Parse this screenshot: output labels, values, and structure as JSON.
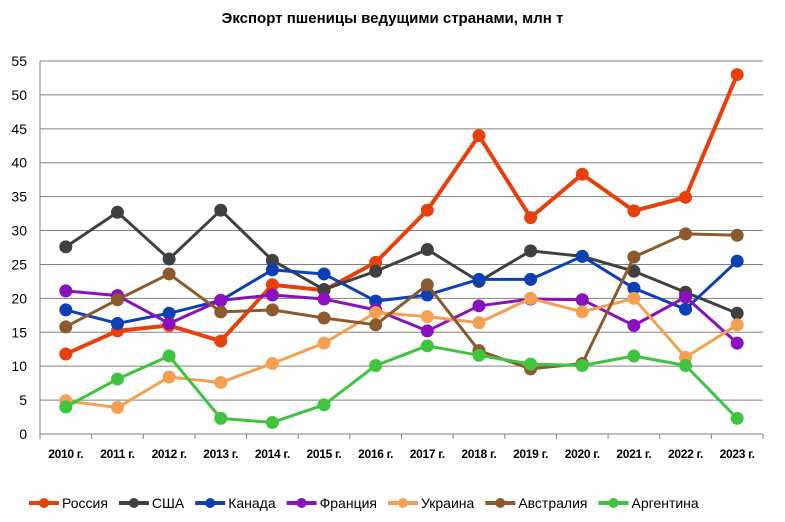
{
  "chart_data": {
    "type": "line",
    "title": "Экспорт пшеницы ведущими странами, млн т",
    "xlabel": "",
    "ylabel": "",
    "ylim": [
      0,
      55
    ],
    "yticks": [
      0,
      5,
      10,
      15,
      20,
      25,
      30,
      35,
      40,
      45,
      50,
      55
    ],
    "grid": true,
    "legend_position": "bottom",
    "categories": [
      "2010 г.",
      "2011 г.",
      "2012 г.",
      "2013 г.",
      "2014 г.",
      "2015 г.",
      "2016 г.",
      "2017 г.",
      "2018 г.",
      "2019 г.",
      "2020 г.",
      "2021 г.",
      "2022 г.",
      "2023 г."
    ],
    "series": [
      {
        "name": "Россия",
        "color": "#e8400c",
        "values": [
          11.8,
          15.2,
          16.0,
          13.7,
          22.0,
          21.2,
          25.3,
          33.0,
          44.0,
          31.9,
          38.3,
          32.9,
          34.9,
          53.0
        ]
      },
      {
        "name": "США",
        "color": "#404040",
        "values": [
          27.6,
          32.7,
          25.8,
          33.0,
          25.6,
          21.3,
          24.0,
          27.2,
          22.5,
          27.0,
          26.2,
          24.0,
          20.9,
          17.8
        ]
      },
      {
        "name": "Канада",
        "color": "#0d3fb5",
        "values": [
          18.3,
          16.3,
          17.8,
          19.7,
          24.2,
          23.6,
          19.6,
          20.5,
          22.8,
          22.8,
          26.2,
          21.5,
          18.4,
          25.5
        ]
      },
      {
        "name": "Франция",
        "color": "#8a10c0",
        "values": [
          21.1,
          20.4,
          16.3,
          19.7,
          20.5,
          19.9,
          18.3,
          15.2,
          18.9,
          19.9,
          19.8,
          16.0,
          20.2,
          13.4
        ]
      },
      {
        "name": "Украина",
        "color": "#f5a050",
        "values": [
          4.9,
          3.9,
          8.4,
          7.6,
          10.4,
          13.4,
          17.9,
          17.3,
          16.4,
          20.0,
          18.0,
          20.0,
          11.3,
          16.1
        ]
      },
      {
        "name": "Австралия",
        "color": "#8c5a2c",
        "values": [
          15.8,
          19.8,
          23.6,
          18.0,
          18.3,
          17.1,
          16.1,
          22.0,
          12.3,
          9.6,
          10.4,
          26.1,
          29.5,
          29.3
        ]
      },
      {
        "name": "Аргентина",
        "color": "#3fc43f",
        "values": [
          4.0,
          8.1,
          11.5,
          2.3,
          1.7,
          4.3,
          10.1,
          13.0,
          11.6,
          10.3,
          10.1,
          11.5,
          10.1,
          2.3
        ]
      }
    ]
  }
}
